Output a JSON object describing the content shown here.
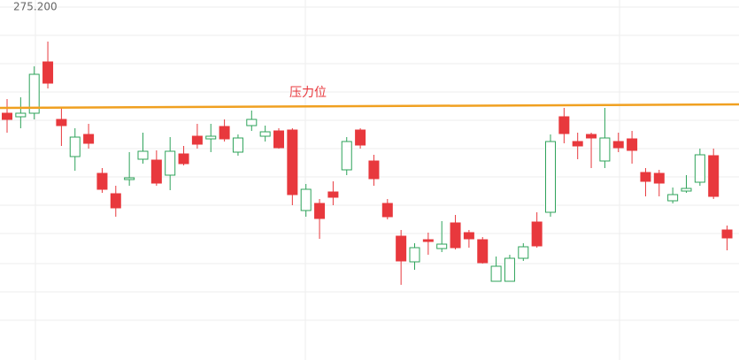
{
  "chart_data": {
    "type": "candlestick",
    "open": [
      274.0,
      273.96,
      274.0,
      274.58,
      273.93,
      273.51,
      273.76,
      273.32,
      273.09,
      273.25,
      273.48,
      273.47,
      273.3,
      273.54,
      273.74,
      273.71,
      273.85,
      273.56,
      273.86,
      273.74,
      273.8,
      273.81,
      272.9,
      272.98,
      273.11,
      273.36,
      273.81,
      273.46,
      272.98,
      272.61,
      272.32,
      272.57,
      272.47,
      272.76,
      272.65,
      272.57,
      272.1,
      272.1,
      272.36,
      272.77,
      272.88,
      273.96,
      273.68,
      273.76,
      273.46,
      273.68,
      273.71,
      273.33,
      273.32,
      273.01,
      273.12,
      273.22,
      273.52,
      272.68
    ],
    "high": [
      274.16,
      274.18,
      274.53,
      274.81,
      274.06,
      273.83,
      273.88,
      273.38,
      273.18,
      273.56,
      273.78,
      273.58,
      273.73,
      273.63,
      273.88,
      273.88,
      273.93,
      273.76,
      274.03,
      273.86,
      273.83,
      273.83,
      273.2,
      273.03,
      273.23,
      273.73,
      273.83,
      273.53,
      273.03,
      272.68,
      272.53,
      272.65,
      272.78,
      272.85,
      272.68,
      272.6,
      272.38,
      272.4,
      272.53,
      272.88,
      273.76,
      274.06,
      273.78,
      273.78,
      274.06,
      273.78,
      273.8,
      273.38,
      273.36,
      273.16,
      273.3,
      273.6,
      273.6,
      272.73
    ],
    "low": [
      273.78,
      273.83,
      273.93,
      274.28,
      273.63,
      273.35,
      273.6,
      273.1,
      272.83,
      273.18,
      273.43,
      273.18,
      273.13,
      273.41,
      273.6,
      273.56,
      273.68,
      273.52,
      273.8,
      273.68,
      273.6,
      272.96,
      272.83,
      272.58,
      272.96,
      273.3,
      273.6,
      273.18,
      272.8,
      272.06,
      272.23,
      272.4,
      272.43,
      272.46,
      272.48,
      272.3,
      272.1,
      272.1,
      272.33,
      272.48,
      272.83,
      273.66,
      273.48,
      273.38,
      273.38,
      273.56,
      273.43,
      273.06,
      273.06,
      272.98,
      273.1,
      273.18,
      273.03,
      272.45
    ],
    "close": [
      273.93,
      274.0,
      274.44,
      274.34,
      273.86,
      273.73,
      273.66,
      273.14,
      272.93,
      273.27,
      273.57,
      273.21,
      273.57,
      273.43,
      273.65,
      273.74,
      273.71,
      273.72,
      273.93,
      273.79,
      273.61,
      273.08,
      273.14,
      272.81,
      273.05,
      273.68,
      273.64,
      273.26,
      272.83,
      272.33,
      272.48,
      272.55,
      272.52,
      272.48,
      272.58,
      272.31,
      272.27,
      272.36,
      272.49,
      272.5,
      273.68,
      273.77,
      273.63,
      273.72,
      273.72,
      273.61,
      273.58,
      273.23,
      273.21,
      273.08,
      273.15,
      273.53,
      273.06,
      272.59
    ],
    "up_color": "#2ea35a",
    "down_color": "#e8383d",
    "ylim": [
      271.21,
      275.28
    ],
    "yticks": [
      {
        "value": 275.2,
        "label": "275.200"
      }
    ],
    "resistance": {
      "label": "压力位",
      "values": [
        274.06,
        274.1
      ],
      "color": "#f0a020"
    }
  }
}
